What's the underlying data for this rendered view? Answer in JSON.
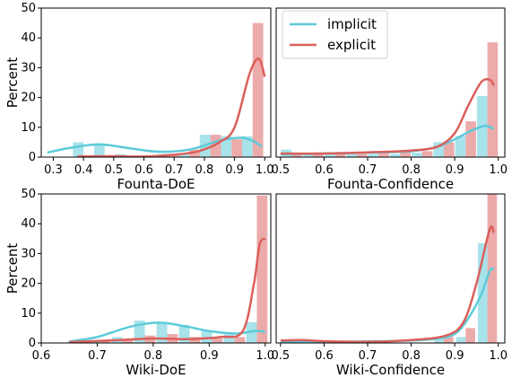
{
  "colors": {
    "implicit_bar": "#a8e2ea",
    "explicit_bar": "#ecabab",
    "implicit_line": "#5ccad8",
    "explicit_line": "#db5f5b"
  },
  "legend": {
    "placement": "top-left of second panel",
    "items": [
      {
        "key": "implicit",
        "label": "implicit"
      },
      {
        "key": "explicit",
        "label": "explicit"
      }
    ]
  },
  "chart_data": [
    {
      "type": "bar",
      "title": "",
      "xlabel": "Founta-DoE",
      "ylabel": "Percent",
      "xlim": [
        0.26,
        1.02
      ],
      "ylim": [
        0,
        50
      ],
      "xticks": [
        "0.3",
        "0.4",
        "0.5",
        "0.6",
        "0.7",
        "0.8",
        "0.9",
        "1.0"
      ],
      "yticks": [
        "0",
        "10",
        "20",
        "30",
        "40",
        "50"
      ],
      "bin_width": 0.035,
      "series": [
        {
          "name": "implicit",
          "x": [
            0.4,
            0.47,
            0.54,
            0.61,
            0.68,
            0.75,
            0.82,
            0.89,
            0.96
          ],
          "values": [
            5,
            4,
            1,
            0.5,
            1,
            1,
            7.5,
            7,
            7
          ]
        },
        {
          "name": "explicit",
          "x": [
            0.4,
            0.47,
            0.54,
            0.61,
            0.68,
            0.75,
            0.82,
            0.89,
            0.96
          ],
          "values": [
            0.5,
            0.5,
            0.5,
            0.5,
            0.5,
            2.5,
            7.5,
            6,
            45
          ]
        }
      ],
      "kde": [
        {
          "name": "implicit",
          "x": [
            0.28,
            0.35,
            0.45,
            0.55,
            0.65,
            0.75,
            0.85,
            0.92,
            0.96,
            0.99
          ],
          "values": [
            1.5,
            3,
            4.3,
            3,
            1.8,
            2.5,
            5.5,
            6.5,
            5.5,
            3.5
          ]
        },
        {
          "name": "explicit",
          "x": [
            0.38,
            0.5,
            0.6,
            0.7,
            0.78,
            0.85,
            0.9,
            0.95,
            0.98,
            1.0
          ],
          "values": [
            0.2,
            0.3,
            0.2,
            0.8,
            2,
            5,
            10,
            28,
            33,
            27
          ]
        }
      ]
    },
    {
      "type": "bar",
      "title": "",
      "xlabel": "Founta-Confidence",
      "ylabel": "",
      "xlim": [
        0.49,
        1.015
      ],
      "ylim": [
        0,
        50
      ],
      "xticks": [
        "0.5",
        "0.6",
        "0.7",
        "0.8",
        "0.9",
        "1.0"
      ],
      "yticks": [],
      "bin_width": 0.024,
      "series": [
        {
          "name": "implicit",
          "x": [
            0.525,
            0.575,
            0.625,
            0.675,
            0.725,
            0.775,
            0.825,
            0.875,
            0.925,
            0.975
          ],
          "values": [
            2.5,
            1,
            1,
            1,
            1,
            1,
            1.5,
            5,
            7,
            20.5
          ]
        },
        {
          "name": "explicit",
          "x": [
            0.525,
            0.575,
            0.625,
            0.675,
            0.725,
            0.775,
            0.825,
            0.875,
            0.925,
            0.975
          ],
          "values": [
            1,
            1,
            1,
            1,
            1.5,
            2,
            2,
            5,
            12,
            38.5
          ]
        }
      ],
      "kde": [
        {
          "name": "implicit",
          "x": [
            0.5,
            0.6,
            0.7,
            0.8,
            0.86,
            0.9,
            0.94,
            0.97,
            0.99
          ],
          "values": [
            1,
            1.2,
            1.5,
            2,
            3.5,
            6,
            9,
            10.5,
            9.5
          ]
        },
        {
          "name": "explicit",
          "x": [
            0.5,
            0.6,
            0.7,
            0.8,
            0.86,
            0.9,
            0.93,
            0.96,
            0.98,
            0.99
          ],
          "values": [
            1.2,
            1.2,
            1.6,
            2.2,
            3.5,
            8,
            17,
            25,
            26,
            24
          ]
        }
      ]
    },
    {
      "type": "bar",
      "title": "",
      "xlabel": "Wiki-DoE",
      "ylabel": "Percent",
      "xlim": [
        0.6,
        1.01
      ],
      "ylim": [
        0,
        50
      ],
      "xticks": [
        "0.6",
        "0.7",
        "0.8",
        "0.9",
        "1.0"
      ],
      "yticks": [
        "0",
        "10",
        "20",
        "30",
        "40",
        "50"
      ],
      "bin_width": 0.019,
      "series": [
        {
          "name": "implicit",
          "x": [
            0.665,
            0.705,
            0.745,
            0.785,
            0.825,
            0.865,
            0.905,
            0.945,
            0.985
          ],
          "values": [
            0.5,
            1,
            2,
            7.5,
            7,
            6,
            4,
            3,
            7
          ]
        },
        {
          "name": "explicit",
          "x": [
            0.665,
            0.705,
            0.745,
            0.785,
            0.825,
            0.865,
            0.905,
            0.945,
            0.985
          ],
          "values": [
            0.5,
            0.5,
            1,
            2.5,
            3,
            2,
            1.5,
            2,
            49.5
          ]
        }
      ],
      "kde": [
        {
          "name": "implicit",
          "x": [
            0.65,
            0.7,
            0.76,
            0.81,
            0.86,
            0.9,
            0.95,
            0.98,
            1.0
          ],
          "values": [
            0.5,
            2,
            5.5,
            6.8,
            5.5,
            4,
            3.2,
            4,
            3.8
          ]
        },
        {
          "name": "explicit",
          "x": [
            0.65,
            0.72,
            0.8,
            0.86,
            0.92,
            0.96,
            0.98,
            0.99,
            1.0
          ],
          "values": [
            0.3,
            0.8,
            1.5,
            1.3,
            2,
            4,
            20,
            33,
            35
          ]
        }
      ]
    },
    {
      "type": "bar",
      "title": "",
      "xlabel": "Wiki-Confidence",
      "ylabel": "",
      "xlim": [
        0.49,
        1.015
      ],
      "ylim": [
        0,
        50
      ],
      "xticks": [
        "0.5",
        "0.6",
        "0.7",
        "0.8",
        "0.9",
        "1.0"
      ],
      "yticks": [],
      "bin_width": 0.022,
      "series": [
        {
          "name": "implicit",
          "x": [
            0.875,
            0.925,
            0.975
          ],
          "values": [
            1.5,
            2,
            33.5
          ]
        },
        {
          "name": "explicit",
          "x": [
            0.875,
            0.925,
            0.975
          ],
          "values": [
            2,
            5,
            50
          ]
        }
      ],
      "kde": [
        {
          "name": "implicit",
          "x": [
            0.5,
            0.6,
            0.7,
            0.8,
            0.86,
            0.9,
            0.93,
            0.96,
            0.98,
            0.99
          ],
          "values": [
            0.3,
            0.4,
            0.5,
            0.8,
            1.5,
            3,
            8,
            16,
            24,
            25
          ]
        },
        {
          "name": "explicit",
          "x": [
            0.5,
            0.55,
            0.6,
            0.7,
            0.8,
            0.88,
            0.92,
            0.95,
            0.98,
            0.99
          ],
          "values": [
            0.8,
            1,
            0.6,
            0.4,
            1,
            2.5,
            7,
            20,
            38,
            37
          ]
        }
      ]
    }
  ]
}
